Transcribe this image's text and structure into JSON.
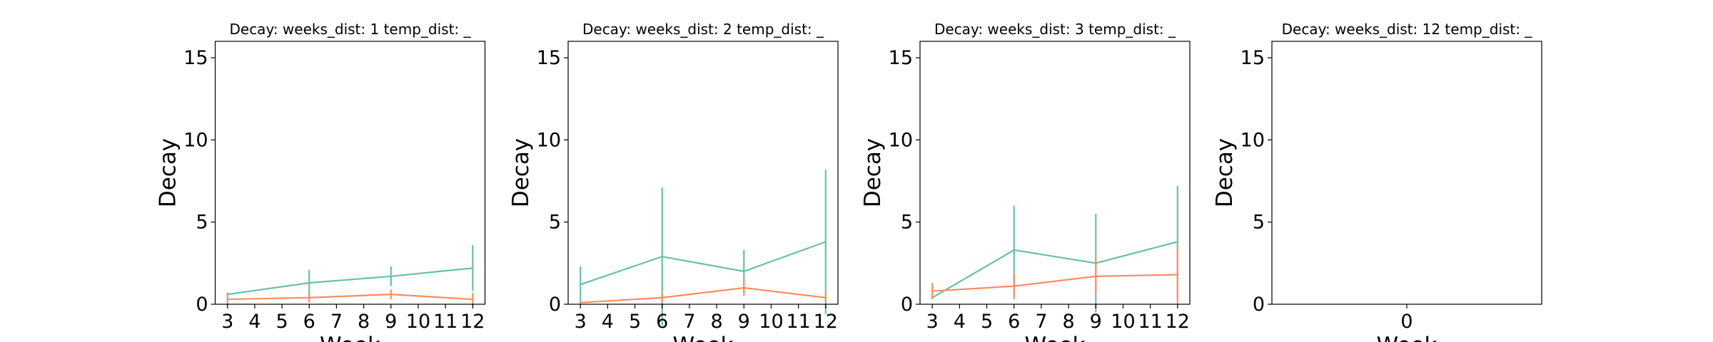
{
  "chart_data": [
    {
      "type": "line",
      "title": "Decay:  weeks_dist: 1  temp_dist: _",
      "xlabel": "Week",
      "ylabel": "Decay",
      "x": [
        3,
        6,
        9,
        12
      ],
      "series": [
        {
          "color": "#66c2a5",
          "values": [
            0.6,
            1.3,
            1.7,
            2.2
          ],
          "errors": [
            0.1,
            0.8,
            0.6,
            1.4
          ]
        },
        {
          "color": "#fc8d62",
          "values": [
            0.3,
            0.4,
            0.6,
            0.3
          ],
          "errors": [
            0.4,
            0.3,
            0.3,
            0.4
          ]
        }
      ],
      "xlim": [
        2.55,
        12.45
      ],
      "ylim": [
        0,
        16
      ],
      "xticks": [
        3,
        4,
        5,
        6,
        7,
        8,
        9,
        10,
        11,
        12
      ],
      "yticks": [
        0,
        5,
        10,
        15
      ]
    },
    {
      "type": "line",
      "title": "Decay:  weeks_dist: 2  temp_dist: _",
      "xlabel": "Week",
      "ylabel": "Decay",
      "x": [
        3,
        6,
        9,
        12
      ],
      "series": [
        {
          "color": "#66c2a5",
          "values": [
            1.2,
            2.9,
            2.0,
            3.8
          ],
          "errors": [
            1.1,
            4.2,
            1.3,
            4.4
          ]
        },
        {
          "color": "#fc8d62",
          "values": [
            0.1,
            0.4,
            1.0,
            0.4
          ],
          "errors": [
            0.1,
            0.3,
            0.5,
            0.3
          ]
        }
      ],
      "xlim": [
        2.55,
        12.45
      ],
      "ylim": [
        0,
        16
      ],
      "xticks": [
        3,
        4,
        5,
        6,
        7,
        8,
        9,
        10,
        11,
        12
      ],
      "yticks": [
        0,
        5,
        10,
        15
      ]
    },
    {
      "type": "line",
      "title": "Decay:  weeks_dist: 3  temp_dist: _",
      "xlabel": "Week",
      "ylabel": "Decay",
      "x": [
        3,
        6,
        9,
        12
      ],
      "series": [
        {
          "color": "#66c2a5",
          "values": [
            0.4,
            3.3,
            2.5,
            3.8
          ],
          "errors": [
            0.1,
            2.7,
            3.0,
            3.4
          ]
        },
        {
          "color": "#fc8d62",
          "values": [
            0.8,
            1.1,
            1.7,
            1.8
          ],
          "errors": [
            0.5,
            0.8,
            1.1,
            1.8
          ]
        }
      ],
      "xlim": [
        2.55,
        12.45
      ],
      "ylim": [
        0,
        16
      ],
      "xticks": [
        3,
        4,
        5,
        6,
        7,
        8,
        9,
        10,
        11,
        12
      ],
      "yticks": [
        0,
        5,
        10,
        15
      ]
    },
    {
      "type": "line",
      "title": "Decay:  weeks_dist: 12  temp_dist: _",
      "xlabel": "Week",
      "ylabel": "Decay",
      "x": [],
      "series": [],
      "xlim": [
        -0.055,
        0.055
      ],
      "ylim": [
        0,
        16
      ],
      "xticks": [
        0
      ],
      "yticks": [
        0,
        5,
        10,
        15
      ]
    }
  ]
}
